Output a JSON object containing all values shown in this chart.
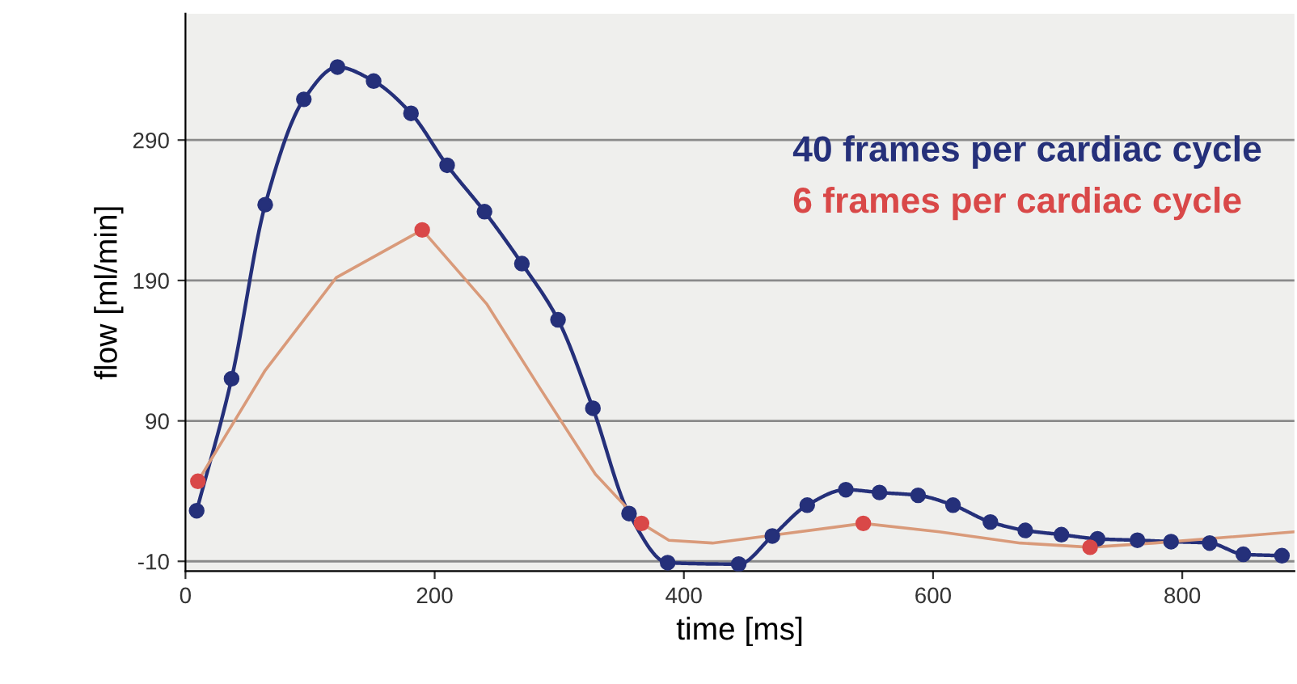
{
  "chart_data": {
    "type": "line",
    "xlabel": "time [ms]",
    "ylabel": "flow [ml/min]",
    "xlim": [
      0,
      890
    ],
    "xticks": [
      0,
      200,
      400,
      600,
      800
    ],
    "ylim": [
      -17,
      380
    ],
    "yticks": [
      -10,
      90,
      190,
      290
    ],
    "grid": "y",
    "legend": "top right",
    "series": [
      {
        "name": "40 frames per cardiac cycle",
        "marker": "circle",
        "color": "#25307a",
        "x": [
          9,
          37,
          64,
          95,
          122,
          151,
          181,
          210,
          240,
          270,
          299,
          327,
          356,
          387,
          444,
          471,
          499,
          530,
          557,
          588,
          616,
          646,
          674,
          703,
          732,
          764,
          791,
          822,
          849,
          880
        ],
        "values": [
          26,
          120,
          244,
          319,
          342,
          332,
          309,
          272,
          239,
          202,
          162,
          99,
          24,
          -11,
          -12,
          8,
          30,
          41,
          39,
          37,
          30,
          18,
          12,
          9,
          6,
          5,
          4,
          3,
          -5,
          -6
        ]
      },
      {
        "marker": "none",
        "color": "#d99a7a",
        "x": [
          10,
          64,
          121,
          190,
          242,
          284,
          329,
          366,
          388,
          423,
          475,
          544,
          605,
          670,
          726,
          778,
          890
        ],
        "values": [
          47,
          126,
          192,
          226,
          173,
          114,
          52,
          17,
          5,
          3,
          9,
          17,
          11,
          3,
          0,
          3,
          11
        ]
      },
      {
        "name": "6 frames per cardiac cycle",
        "type": "scatter",
        "marker": "circle",
        "color": "#d94848",
        "x": [
          10,
          190,
          366,
          544,
          726
        ],
        "values": [
          47,
          226,
          17,
          17,
          0
        ]
      }
    ]
  }
}
